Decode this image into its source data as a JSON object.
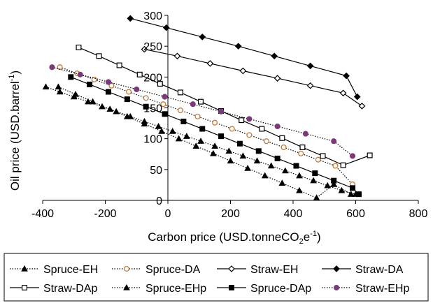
{
  "chart_data": {
    "type": "line",
    "title": "",
    "xlabel": "Carbon price (USD.tonneCO",
    "xlabel_sub": "2",
    "xlabel_tail": "e",
    "xlabel_sup": "-1",
    "xlabel_close": ")",
    "ylabel": "Oil price (USD.barrel",
    "ylabel_sup": "-1",
    "ylabel_close": ")",
    "xlim": [
      -400,
      800
    ],
    "ylim": [
      0,
      300
    ],
    "x_ticks": [
      -400,
      -200,
      0,
      200,
      400,
      600,
      800
    ],
    "y_ticks": [
      0,
      50,
      100,
      150,
      200,
      250,
      300
    ],
    "x_tick_labels": [
      "-400",
      "-200",
      "0",
      "200",
      "400",
      "600",
      "800"
    ],
    "y_tick_labels": [
      "0",
      "50",
      "100",
      "150",
      "200",
      "250",
      "300"
    ],
    "grid": false,
    "legend_position": "bottom",
    "series": [
      {
        "name": "Spruce-EH",
        "marker": "triangle",
        "fill": "#000000",
        "line": "dotted",
        "color": "#000000",
        "x": [
          -390,
          -345,
          -300,
          -255,
          -210,
          -165,
          -120,
          -75,
          -30,
          15,
          60,
          105,
          150,
          195,
          240,
          285,
          330,
          375,
          420,
          465,
          510,
          555,
          600
        ],
        "y": [
          184,
          176,
          168,
          160,
          152,
          144,
          136,
          128,
          120,
          112,
          104,
          96,
          88,
          80,
          72,
          64,
          56,
          48,
          40,
          32,
          24,
          16,
          10
        ]
      },
      {
        "name": "Spruce-DA",
        "marker": "circle",
        "fill": "#ffffff",
        "stroke": "#c07a3c",
        "line": "dotted",
        "color": "#000000",
        "x": [
          -345,
          -290,
          -235,
          -180,
          -125,
          -70,
          -15,
          40,
          95,
          150,
          205,
          260,
          315,
          370,
          425,
          480,
          535,
          590
        ],
        "y": [
          216,
          206,
          196,
          186,
          176,
          166,
          156,
          146,
          136,
          126,
          116,
          106,
          96,
          86,
          76,
          66,
          56,
          26
        ]
      },
      {
        "name": "Straw-EH",
        "marker": "diamond",
        "fill": "#ffffff",
        "line": "solid",
        "color": "#000000",
        "x": [
          -75,
          30,
          135,
          240,
          350,
          455,
          560,
          620
        ],
        "y": [
          245,
          234,
          222,
          210,
          198,
          186,
          174,
          153
        ]
      },
      {
        "name": "Straw-DA",
        "marker": "diamond",
        "fill": "#000000",
        "line": "solid",
        "color": "#000000",
        "x": [
          -120,
          -5,
          110,
          225,
          340,
          455,
          570,
          605
        ],
        "y": [
          295,
          280,
          265,
          250,
          234,
          218,
          202,
          168
        ]
      },
      {
        "name": "Straw-DAp",
        "marker": "square",
        "fill": "#ffffff",
        "line": "solid",
        "color": "#000000",
        "x": [
          -285,
          -220,
          -155,
          -90,
          -25,
          40,
          105,
          170,
          235,
          300,
          365,
          430,
          495,
          560,
          645
        ],
        "y": [
          248,
          234,
          219,
          204,
          189,
          175,
          160,
          145,
          130,
          116,
          101,
          86,
          72,
          57,
          73
        ]
      },
      {
        "name": "Spruce-EHp",
        "marker": "triangle",
        "fill": "#000000",
        "line": "dotted",
        "color": "#000000",
        "x": [
          -350,
          -295,
          -240,
          -185,
          -130,
          -75,
          -20,
          35,
          90,
          145,
          200,
          255,
          310,
          365,
          420,
          475,
          530,
          585
        ],
        "y": [
          184,
          172,
          160,
          148,
          136,
          124,
          112,
          100,
          88,
          76,
          64,
          52,
          40,
          28,
          16,
          4,
          26,
          10
        ]
      },
      {
        "name": "Spruce-DAp",
        "marker": "square",
        "fill": "#000000",
        "line": "solid",
        "color": "#000000",
        "x": [
          -310,
          -250,
          -190,
          -130,
          -70,
          -10,
          50,
          110,
          170,
          230,
          290,
          350,
          410,
          470,
          530,
          590,
          610
        ],
        "y": [
          200,
          188,
          176,
          164,
          152,
          140,
          128,
          116,
          104,
          92,
          80,
          68,
          56,
          44,
          32,
          20,
          10
        ]
      },
      {
        "name": "Straw-EHp",
        "marker": "circle",
        "fill": "#7a3a7a",
        "stroke": "#7a3a7a",
        "line": "dotted",
        "color": "#000000",
        "x": [
          -370,
          -280,
          -190,
          -100,
          -10,
          80,
          170,
          260,
          350,
          440,
          530,
          590
        ],
        "y": [
          216,
          204,
          192,
          180,
          168,
          156,
          144,
          132,
          120,
          108,
          96,
          72
        ]
      }
    ]
  }
}
